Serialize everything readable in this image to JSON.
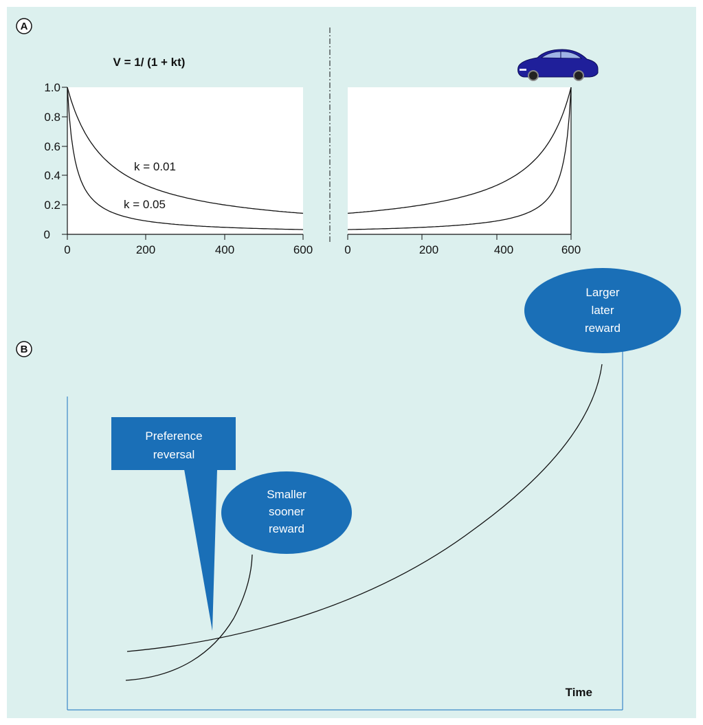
{
  "colors": {
    "background": "#dcf0ee",
    "plot_bg": "#ffffff",
    "line": "#111111",
    "accent_blue": "#1a6fb7",
    "axis_blue": "#3a86c8",
    "car": "#1f1f9a"
  },
  "panels": {
    "a_label": "A",
    "b_label": "B"
  },
  "icons": {
    "car": "car-icon"
  },
  "chart_data": [
    {
      "type": "line",
      "title": "V = 1/ (1 + kt)",
      "xlabel": "",
      "ylabel": "",
      "xlim": [
        0,
        600
      ],
      "ylim": [
        0,
        1
      ],
      "xticks": [
        "0",
        "200",
        "400",
        "600"
      ],
      "yticks": [
        "0",
        "0.2",
        "0.4",
        "0.6",
        "0.8",
        "1.0"
      ],
      "grid": false,
      "series": [
        {
          "name": "k = 0.01",
          "k": 0.01,
          "x": [
            0,
            100,
            200,
            300,
            400,
            500,
            600
          ],
          "values": [
            1.0,
            0.5,
            0.33,
            0.25,
            0.2,
            0.17,
            0.14
          ]
        },
        {
          "name": "k = 0.05",
          "k": 0.05,
          "x": [
            0,
            100,
            200,
            300,
            400,
            500,
            600
          ],
          "values": [
            1.0,
            0.17,
            0.09,
            0.06,
            0.05,
            0.04,
            0.03
          ]
        }
      ]
    },
    {
      "type": "line",
      "title": "",
      "xlabel": "",
      "ylabel": "",
      "xlim": [
        0,
        600
      ],
      "ylim": [
        0,
        1
      ],
      "xticks": [
        "0",
        "200",
        "400",
        "600"
      ],
      "grid": false,
      "series": [
        {
          "name": "",
          "k": 0.01,
          "x": [
            0,
            100,
            200,
            300,
            400,
            500,
            600
          ],
          "values": [
            0.14,
            0.17,
            0.2,
            0.25,
            0.33,
            0.5,
            1.0
          ]
        },
        {
          "name": "",
          "k": 0.05,
          "x": [
            0,
            100,
            200,
            300,
            400,
            500,
            600
          ],
          "values": [
            0.03,
            0.04,
            0.05,
            0.06,
            0.09,
            0.17,
            1.0
          ]
        }
      ]
    },
    {
      "type": "line",
      "title": "",
      "xlabel": "Time",
      "ylabel": "",
      "series": [
        {
          "name": "",
          "role": "smaller sooner reward"
        },
        {
          "name": "",
          "role": "larger later reward"
        }
      ],
      "annotations": {
        "larger_reward": "Larger\nlater\nreward",
        "smaller_reward": "Smaller\nsooner\nreward",
        "reversal": "Preference\nreversal"
      }
    }
  ]
}
